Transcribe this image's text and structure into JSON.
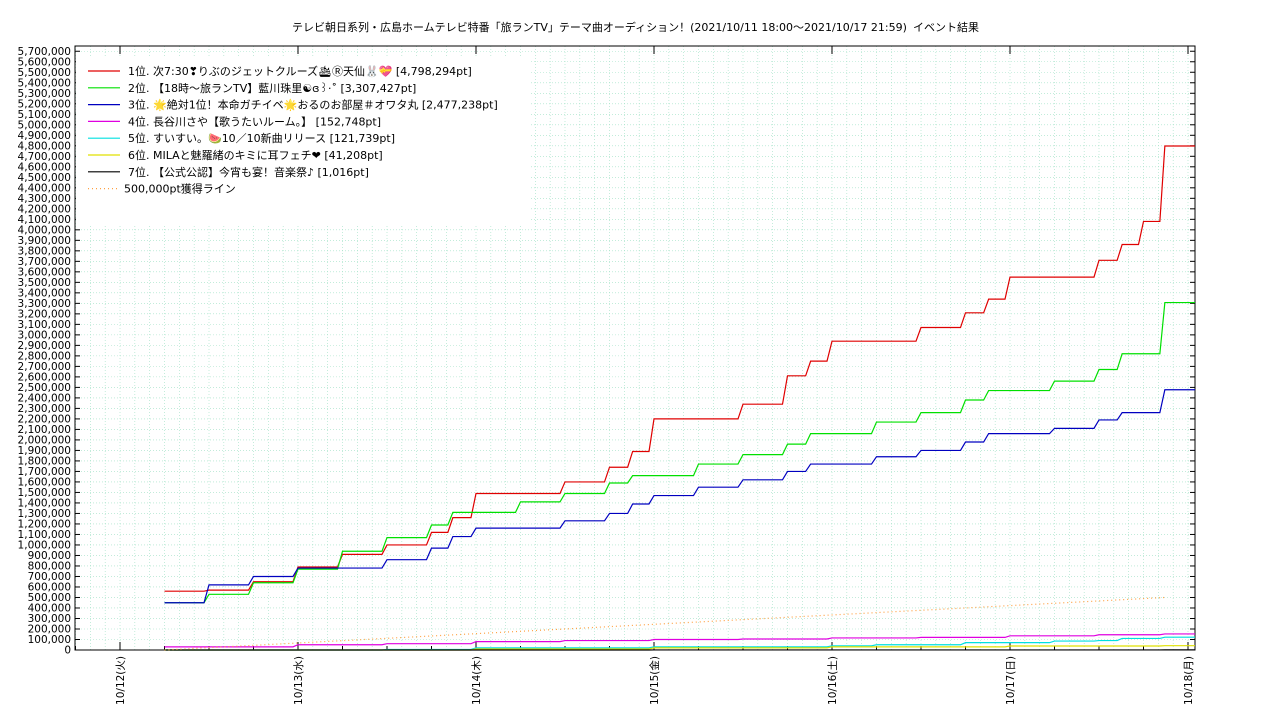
{
  "chart_data": {
    "type": "line",
    "title": "テレビ朝日系列・広島ホームテレビ特番「旅ランTV」テーマ曲オーディション！(2021/10/11 18:00〜2021/10/17 21:59)",
    "subtitle": "イベント結果",
    "xlabel": "",
    "ylabel": "",
    "x_tick_labels": [
      "10/12(火)",
      "10/13(水)",
      "10/14(木)",
      "10/15(金)",
      "10/16(土)",
      "10/17(日)",
      "10/18(月)"
    ],
    "x_range": [
      "2021-10-11 18:00",
      "2021-10-18 00:00"
    ],
    "ylim": [
      0,
      5750000
    ],
    "y_tick_step": 100000,
    "grid": true,
    "legend_position": "top-left",
    "series": [
      {
        "name": "1位. 次7:30❣りぶのジェットクルーズ🛳Ⓡ天仙🐰💝 [4,798,294pt]",
        "color": "#e00000",
        "points": [
          [
            0.25,
            560000
          ],
          [
            0.5,
            570000
          ],
          [
            0.75,
            650000
          ],
          [
            1.0,
            790000
          ],
          [
            1.25,
            910000
          ],
          [
            1.5,
            1000000
          ],
          [
            1.75,
            1120000
          ],
          [
            1.87,
            1260000
          ],
          [
            2.0,
            1490000
          ],
          [
            2.5,
            1600000
          ],
          [
            2.75,
            1740000
          ],
          [
            2.88,
            1890000
          ],
          [
            3.0,
            2200000
          ],
          [
            3.5,
            2340000
          ],
          [
            3.75,
            2610000
          ],
          [
            3.88,
            2750000
          ],
          [
            4.0,
            2940000
          ],
          [
            4.5,
            3070000
          ],
          [
            4.75,
            3210000
          ],
          [
            4.88,
            3340000
          ],
          [
            5.0,
            3550000
          ],
          [
            5.5,
            3710000
          ],
          [
            5.63,
            3860000
          ],
          [
            5.75,
            4080000
          ],
          [
            5.87,
            4798294
          ]
        ]
      },
      {
        "name": "2位. 【18時〜旅ランTV】藍川珠里☯ɞ꒱·˚ [3,307,427pt]",
        "color": "#00e000",
        "points": [
          [
            0.25,
            450000
          ],
          [
            0.5,
            530000
          ],
          [
            0.75,
            640000
          ],
          [
            1.0,
            770000
          ],
          [
            1.25,
            940000
          ],
          [
            1.5,
            1070000
          ],
          [
            1.75,
            1190000
          ],
          [
            1.87,
            1310000
          ],
          [
            2.0,
            1310000
          ],
          [
            2.25,
            1410000
          ],
          [
            2.5,
            1490000
          ],
          [
            2.75,
            1590000
          ],
          [
            2.88,
            1660000
          ],
          [
            3.25,
            1770000
          ],
          [
            3.5,
            1860000
          ],
          [
            3.75,
            1960000
          ],
          [
            3.88,
            2060000
          ],
          [
            4.0,
            2060000
          ],
          [
            4.25,
            2170000
          ],
          [
            4.5,
            2260000
          ],
          [
            4.75,
            2380000
          ],
          [
            4.88,
            2470000
          ],
          [
            5.25,
            2560000
          ],
          [
            5.5,
            2670000
          ],
          [
            5.63,
            2820000
          ],
          [
            5.87,
            3307427
          ]
        ]
      },
      {
        "name": "3位. 🌟絶対1位！本命ガチイベ🌟おるのお部屋＃オワタ丸 [2,477,238pt]",
        "color": "#0000c0",
        "points": [
          [
            0.25,
            450000
          ],
          [
            0.5,
            620000
          ],
          [
            0.75,
            700000
          ],
          [
            1.0,
            780000
          ],
          [
            1.25,
            780000
          ],
          [
            1.5,
            860000
          ],
          [
            1.75,
            970000
          ],
          [
            1.87,
            1080000
          ],
          [
            2.0,
            1160000
          ],
          [
            2.5,
            1230000
          ],
          [
            2.75,
            1300000
          ],
          [
            2.88,
            1390000
          ],
          [
            3.0,
            1470000
          ],
          [
            3.25,
            1550000
          ],
          [
            3.5,
            1620000
          ],
          [
            3.75,
            1700000
          ],
          [
            3.88,
            1770000
          ],
          [
            4.0,
            1770000
          ],
          [
            4.25,
            1840000
          ],
          [
            4.5,
            1900000
          ],
          [
            4.75,
            1980000
          ],
          [
            4.88,
            2060000
          ],
          [
            5.25,
            2110000
          ],
          [
            5.5,
            2190000
          ],
          [
            5.63,
            2260000
          ],
          [
            5.87,
            2477238
          ]
        ]
      },
      {
        "name": "4位. 長谷川さや【歌うたいルーム。】 [152,748pt]",
        "color": "#e000e0",
        "points": [
          [
            0.25,
            30000
          ],
          [
            1.0,
            50000
          ],
          [
            1.5,
            60000
          ],
          [
            2.0,
            80000
          ],
          [
            2.5,
            90000
          ],
          [
            3.0,
            100000
          ],
          [
            3.5,
            105000
          ],
          [
            4.0,
            115000
          ],
          [
            4.5,
            120000
          ],
          [
            5.0,
            135000
          ],
          [
            5.5,
            145000
          ],
          [
            5.87,
            152748
          ]
        ]
      },
      {
        "name": "5位. すいすい。🍉10／10新曲リリース [121,739pt]",
        "color": "#00e0e0",
        "points": [
          [
            0.25,
            0
          ],
          [
            1.5,
            5000
          ],
          [
            2.0,
            20000
          ],
          [
            3.0,
            30000
          ],
          [
            4.0,
            40000
          ],
          [
            4.25,
            50000
          ],
          [
            4.75,
            70000
          ],
          [
            5.25,
            85000
          ],
          [
            5.5,
            90000
          ],
          [
            5.63,
            110000
          ],
          [
            5.87,
            121739
          ]
        ]
      },
      {
        "name": "6位. MILAと魅羅緒のキミに耳フェチ❤ [41,208pt]",
        "color": "#e0e000",
        "points": [
          [
            0.25,
            0
          ],
          [
            2.0,
            10000
          ],
          [
            3.0,
            20000
          ],
          [
            4.0,
            30000
          ],
          [
            5.0,
            38000
          ],
          [
            5.87,
            41208
          ]
        ]
      },
      {
        "name": "7位. 【公式公認】今宵も宴！音楽祭♪ [1,016pt]",
        "color": "#000000",
        "points": [
          [
            0.25,
            0
          ],
          [
            3.0,
            500
          ],
          [
            5.87,
            1016
          ]
        ]
      },
      {
        "name": "500,000pt獲得ライン",
        "color": "#ffa040",
        "dotted": true,
        "points": [
          [
            0.25,
            0
          ],
          [
            5.87,
            500000
          ]
        ]
      }
    ]
  }
}
